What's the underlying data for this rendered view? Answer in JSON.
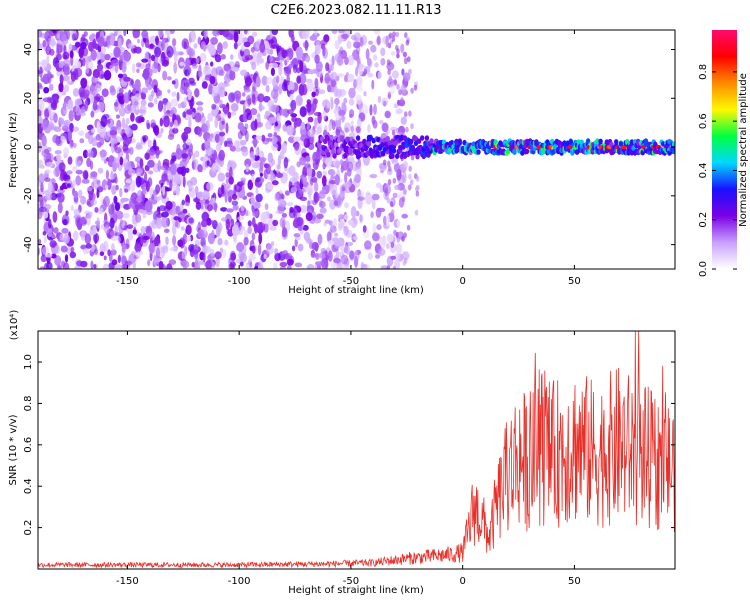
{
  "title": "C2E6.2023.082.11.11.R13",
  "chart_data": [
    {
      "type": "heatmap",
      "xlabel": "Height of straight line (km)",
      "ylabel": "Frequency (Hz)",
      "xlim": [
        -190,
        95
      ],
      "ylim": [
        -50,
        48
      ],
      "xticks": [
        -150,
        -100,
        -50,
        0,
        50
      ],
      "yticks": [
        -40,
        -20,
        0,
        20,
        40
      ],
      "colorbar": {
        "label": "Normalized spectral amplitude",
        "range": [
          0.0,
          0.97
        ],
        "ticks": [
          0.0,
          0.2,
          0.4,
          0.6,
          0.8
        ],
        "tick_labels": [
          "0.0",
          "0.2",
          "0.4",
          "0.6",
          "0.8"
        ],
        "colors": [
          "#ffffff",
          "#c9a0ff",
          "#7a00e6",
          "#1a10ff",
          "#00d8ff",
          "#00ff40",
          "#fff700",
          "#ff8a00",
          "#ff0000",
          "#ff0a6e"
        ]
      },
      "description_regions": {
        "noise_region_x": [
          -190,
          -35
        ],
        "noise_region_amplitude": [
          0.05,
          0.25
        ],
        "signal_line_x": [
          -40,
          95
        ],
        "signal_line_frequency": 0,
        "signal_line_amplitude": [
          0.3,
          0.97
        ]
      }
    },
    {
      "type": "line",
      "xlabel": "Height of straight line (km)",
      "ylabel": "SNR (10 * v/v)",
      "y_scale_label": "(x10⁴)",
      "xlim": [
        -190,
        95
      ],
      "ylim": [
        0,
        1.15
      ],
      "xticks": [
        -150,
        -100,
        -50,
        0,
        50
      ],
      "yticks": [
        0.2,
        0.4,
        0.6,
        0.8,
        1.0
      ],
      "ytick_labels": [
        "0.2",
        "0.4",
        "0.6",
        "0.8",
        "1.0"
      ],
      "color": "#e8302a",
      "series": [
        {
          "x": [
            -190,
            -150,
            -100,
            -60,
            -40,
            -25,
            -15,
            -5,
            0,
            3,
            5,
            8,
            10,
            12,
            15,
            20,
            25,
            30,
            35,
            40,
            50,
            60,
            70,
            80,
            90,
            95
          ],
          "values": [
            0.02,
            0.02,
            0.02,
            0.025,
            0.03,
            0.05,
            0.06,
            0.07,
            0.08,
            0.2,
            0.3,
            0.25,
            0.2,
            0.15,
            0.3,
            0.45,
            0.55,
            0.5,
            0.6,
            0.55,
            0.6,
            0.55,
            0.6,
            0.55,
            0.5,
            0.5
          ]
        }
      ],
      "peak_max": 1.15
    }
  ]
}
